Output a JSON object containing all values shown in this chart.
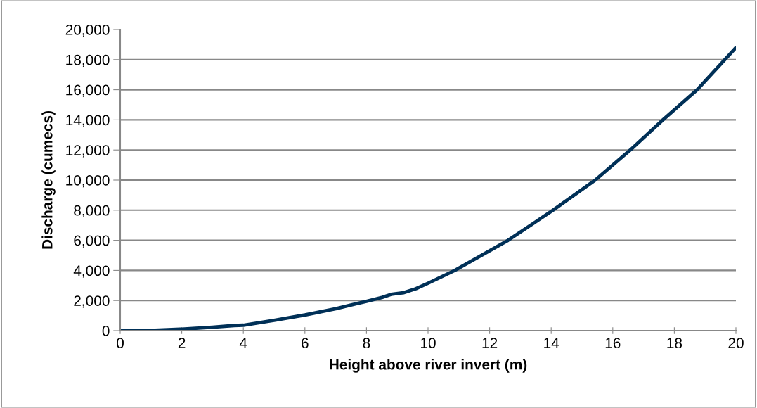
{
  "chart_data": {
    "type": "line",
    "xlabel": "Height above river invert (m)",
    "ylabel": "Discharge (cumecs)",
    "series": [
      {
        "color": "#003057",
        "x": [
          0,
          1,
          2,
          3,
          3.7,
          4,
          5,
          6,
          7,
          8,
          8.5,
          8.8,
          9.2,
          9.6,
          10,
          10.87,
          12.6,
          14.06,
          15.43,
          16.57,
          17.63,
          18.74,
          20
        ],
        "values": [
          0,
          20,
          100,
          230,
          340,
          360,
          680,
          1040,
          1450,
          1950,
          2200,
          2410,
          2520,
          2780,
          3150,
          4000,
          6000,
          8000,
          10000,
          12000,
          14000,
          16000,
          18800
        ]
      }
    ],
    "xlim": [
      0,
      20
    ],
    "xticks": [
      0,
      2,
      4,
      6,
      8,
      10,
      12,
      14,
      16,
      18,
      20
    ],
    "ylim": [
      0,
      20000
    ],
    "yticks": [
      {
        "value": 0,
        "label": "0"
      },
      {
        "value": 2000,
        "label": "2,000"
      },
      {
        "value": 4000,
        "label": "4,000"
      },
      {
        "value": 6000,
        "label": "6,000"
      },
      {
        "value": 8000,
        "label": "8,000"
      },
      {
        "value": 10000,
        "label": "10,000"
      },
      {
        "value": 12000,
        "label": "12,000"
      },
      {
        "value": 14000,
        "label": "14,000"
      },
      {
        "value": 16000,
        "label": "16,000"
      },
      {
        "value": 18000,
        "label": "18,000"
      },
      {
        "value": 20000,
        "label": "20,000"
      }
    ],
    "grid": "y",
    "legend": false
  }
}
